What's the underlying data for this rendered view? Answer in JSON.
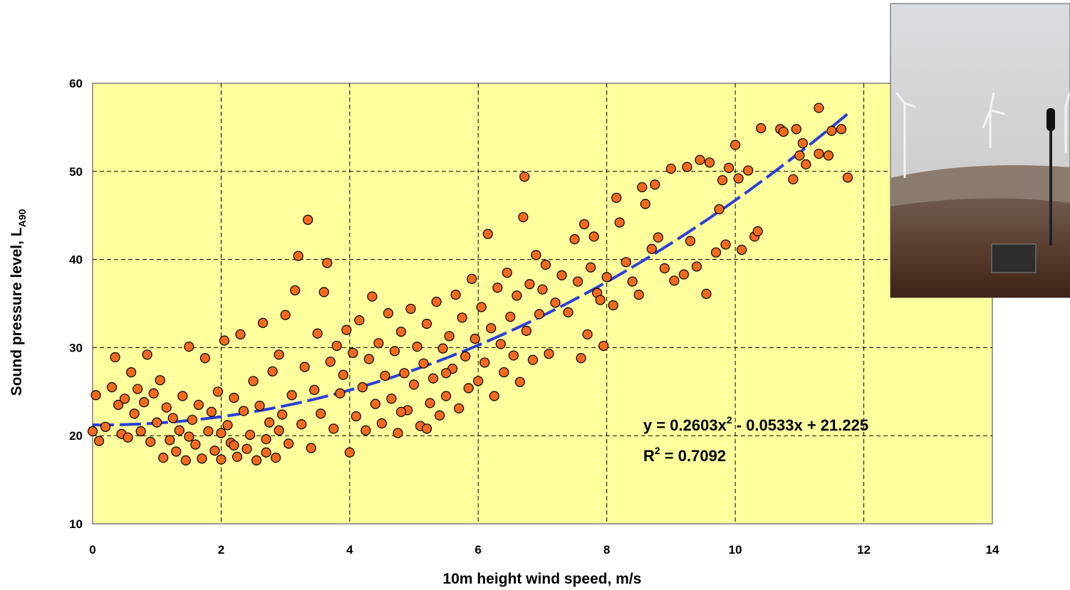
{
  "chart_data": {
    "type": "scatter",
    "x_label": "10m height wind speed, m/s",
    "y_label": [
      "Sound pressure level, L",
      "A90"
    ],
    "xlim": [
      0,
      14
    ],
    "xticks": [
      0,
      2,
      4,
      6,
      8,
      10,
      12,
      14
    ],
    "ylim": [
      10,
      60
    ],
    "yticks": [
      10,
      20,
      30,
      40,
      50,
      60
    ],
    "grid": true,
    "color": "#f26a1f",
    "background": "#ffff9e",
    "x": [
      0,
      0.05,
      0.1,
      0.2,
      0.3,
      0.35,
      0.4,
      0.45,
      0.5,
      0.55,
      0.6,
      0.65,
      0.7,
      0.75,
      0.8,
      0.85,
      0.9,
      0.95,
      1.0,
      1.05,
      1.1,
      1.15,
      1.2,
      1.25,
      1.3,
      1.35,
      1.4,
      1.45,
      1.5,
      1.55,
      1.6,
      1.65,
      1.7,
      1.75,
      1.8,
      1.85,
      1.9,
      1.95,
      2.0,
      2.05,
      2.1,
      2.15,
      2.2,
      2.25,
      2.3,
      2.35,
      2.4,
      2.45,
      2.5,
      2.55,
      2.6,
      2.65,
      2.7,
      2.75,
      2.8,
      2.85,
      2.9,
      2.95,
      3.0,
      3.05,
      3.1,
      3.15,
      3.2,
      3.25,
      3.3,
      3.35,
      3.4,
      3.45,
      3.5,
      3.55,
      3.6,
      3.65,
      3.7,
      3.75,
      3.8,
      3.85,
      3.9,
      3.95,
      4.0,
      4.05,
      4.1,
      4.15,
      4.2,
      4.25,
      4.3,
      4.35,
      4.4,
      4.45,
      4.5,
      4.55,
      4.6,
      4.65,
      4.7,
      4.75,
      4.8,
      4.85,
      4.9,
      4.95,
      5.0,
      5.05,
      5.1,
      5.15,
      5.2,
      5.25,
      5.3,
      5.35,
      5.4,
      5.45,
      5.5,
      5.55,
      5.6,
      5.65,
      5.7,
      5.75,
      5.8,
      5.85,
      5.9,
      5.95,
      6.0,
      6.05,
      6.1,
      6.15,
      6.2,
      6.25,
      6.3,
      6.35,
      6.4,
      6.45,
      6.5,
      6.55,
      6.6,
      6.65,
      6.7,
      6.72,
      6.75,
      6.8,
      6.85,
      6.9,
      6.95,
      7.0,
      7.05,
      7.1,
      7.2,
      7.3,
      7.4,
      7.5,
      7.55,
      7.6,
      7.65,
      7.7,
      7.75,
      7.8,
      7.85,
      7.9,
      7.95,
      8.0,
      8.1,
      8.15,
      8.2,
      8.3,
      8.4,
      8.5,
      8.55,
      8.6,
      8.7,
      8.75,
      8.8,
      8.9,
      9.0,
      9.05,
      9.2,
      9.25,
      9.3,
      9.4,
      9.45,
      9.55,
      9.6,
      9.7,
      9.75,
      9.8,
      9.85,
      9.9,
      10.0,
      10.05,
      10.1,
      10.2,
      10.3,
      10.35,
      10.4,
      10.7,
      10.75,
      10.9,
      10.95,
      11.0,
      11.05,
      11.1,
      11.3,
      11.3,
      11.45,
      11.5,
      11.65,
      11.75,
      2.0,
      2.2,
      1.5,
      2.7,
      2.9,
      4.8,
      5.2,
      5.5
    ],
    "values": [
      20.5,
      24.6,
      19.4,
      21,
      25.5,
      28.9,
      23.5,
      20.2,
      24.2,
      19.8,
      27.2,
      22.5,
      25.3,
      20.5,
      23.8,
      29.2,
      19.3,
      24.8,
      21.5,
      26.3,
      17.5,
      23.2,
      19.5,
      22,
      18.2,
      20.6,
      24.5,
      17.2,
      30.1,
      21.8,
      19,
      23.5,
      17.4,
      28.8,
      20.5,
      22.7,
      18.3,
      25,
      17.3,
      30.8,
      21.2,
      19.2,
      24.3,
      17.6,
      31.5,
      22.8,
      18.5,
      20.1,
      26.2,
      17.2,
      23.4,
      32.8,
      19.6,
      21.5,
      27.3,
      17.5,
      29.2,
      22.4,
      33.7,
      19.1,
      24.6,
      36.5,
      40.4,
      21.3,
      27.8,
      44.5,
      18.6,
      25.2,
      31.6,
      22.5,
      36.3,
      39.6,
      28.4,
      20.8,
      30.2,
      24.8,
      26.9,
      32,
      18.1,
      29.4,
      22.2,
      33.1,
      25.5,
      20.6,
      28.7,
      35.8,
      23.6,
      30.5,
      21.4,
      26.8,
      33.9,
      24.2,
      29.6,
      20.3,
      31.8,
      27.1,
      22.9,
      34.4,
      25.8,
      30.1,
      21.1,
      28.2,
      32.7,
      23.7,
      26.5,
      35.2,
      22.3,
      29.9,
      24.5,
      31.3,
      27.6,
      36,
      23.1,
      33.4,
      29,
      25.4,
      37.8,
      31,
      26.2,
      34.6,
      28.3,
      42.9,
      32.2,
      24.5,
      36.8,
      30.4,
      27.2,
      38.5,
      33.5,
      29.1,
      35.9,
      26.1,
      44.8,
      49.4,
      31.9,
      37.2,
      28.6,
      40.5,
      33.8,
      36.6,
      39.4,
      29.3,
      35.1,
      38.2,
      34,
      42.3,
      37.5,
      28.8,
      44,
      31.5,
      39.1,
      42.6,
      36.2,
      35.4,
      30.2,
      38,
      34.8,
      47,
      44.2,
      39.7,
      37.5,
      36,
      48.2,
      46.3,
      41.2,
      48.5,
      42.5,
      39,
      50.3,
      37.6,
      38.3,
      50.5,
      42.1,
      39.2,
      51.3,
      36.1,
      51,
      40.8,
      45.7,
      49,
      41.7,
      50.4,
      53,
      49.2,
      41.1,
      50.1,
      42.6,
      43.2,
      54.9,
      54.8,
      54.5,
      49.1,
      54.8,
      51.8,
      53.2,
      50.8,
      57.2,
      52,
      51.8,
      54.6,
      54.8,
      49.3,
      20.3,
      18.9,
      19.9,
      18.1,
      20.6,
      22.7,
      20.8,
      27.1
    ],
    "trendline": {
      "color": "#2b3fd6",
      "coefficients": [
        0.2603,
        -0.0533,
        21.225
      ],
      "equation": [
        "y = 0.2603x",
        "2",
        " - 0.0533x + 21.225"
      ],
      "r2": [
        "R",
        "2",
        " = 0.7092"
      ]
    }
  }
}
